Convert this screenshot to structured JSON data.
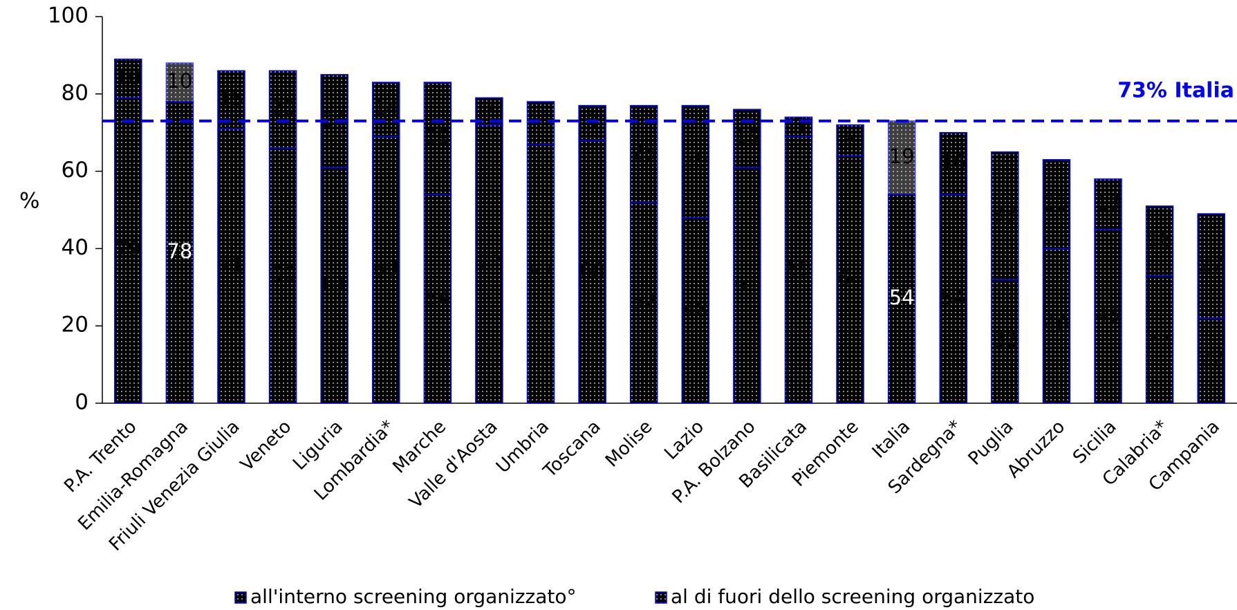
{
  "chart_data": {
    "type": "stacked_bar",
    "y_axis_label": "%",
    "categories": [
      "P.A. Trento",
      "Emilia-Romagna",
      "Friuli Venezia Giulia",
      "Veneto",
      "Liguria",
      "Lombardia*",
      "Marche",
      "Valle d'Aosta",
      "Umbria",
      "Toscana",
      "Molise",
      "Lazio",
      "P.A. Bolzano",
      "Basilicata",
      "Piemonte",
      "Italia",
      "Sardegna*",
      "Puglia",
      "Abruzzo",
      "Sicilia",
      "Calabria*",
      "Campania"
    ],
    "series": [
      {
        "name": "all'interno screening organizzato°",
        "color": "#808080",
        "values": [
          79,
          78,
          71,
          66,
          61,
          69,
          54,
          72,
          67,
          68,
          52,
          48,
          61,
          69,
          64,
          54,
          54,
          32,
          40,
          45,
          33,
          22
        ]
      },
      {
        "name": "al di fuori dello screening organizzato",
        "color": "#e6e6e6",
        "values": [
          10,
          10,
          15,
          20,
          24,
          14,
          29,
          7,
          11,
          9,
          25,
          29,
          15,
          5,
          8,
          19,
          16,
          33,
          23,
          13,
          18,
          27
        ]
      }
    ],
    "highlights": [
      {
        "index": 1,
        "color": "#008000"
      },
      {
        "index": 15,
        "color": "#0000ff"
      }
    ],
    "reference_line": {
      "value": 73,
      "label": "73% Italia",
      "color": "#0000ff"
    },
    "bar_border_color": "#0000ff",
    "ylim": [
      0,
      100
    ],
    "yticks": [
      0,
      20,
      40,
      60,
      80,
      100
    ],
    "legend": "bottom"
  }
}
